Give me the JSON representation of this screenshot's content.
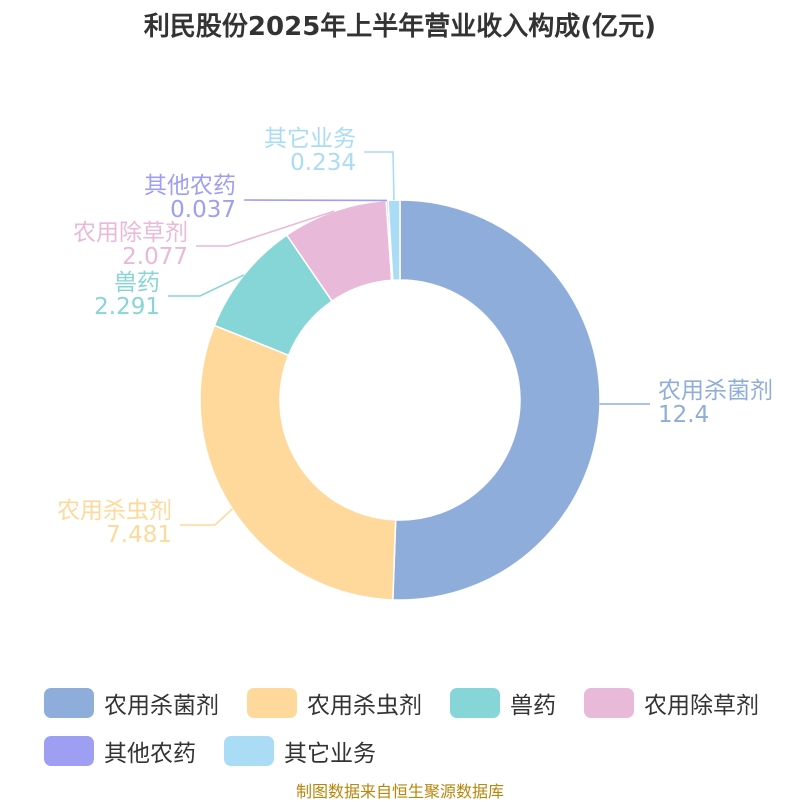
{
  "title": "利民股份2025年上半年营业收入构成(亿元)",
  "source": "制图数据来自恒生聚源数据库",
  "chart_data": {
    "type": "pie",
    "donut": true,
    "title": "利民股份2025年上半年营业收入构成(亿元)",
    "categories": [
      "农用杀菌剂",
      "农用杀虫剂",
      "兽药",
      "农用除草剂",
      "其他农药",
      "其它业务"
    ],
    "values": [
      12.4,
      7.481,
      2.291,
      2.077,
      0.037,
      0.234
    ],
    "value_labels": [
      "12.4",
      "7.481",
      "2.291",
      "2.077",
      "0.037",
      "0.234"
    ],
    "colors": [
      "#8faddb",
      "#ffd99b",
      "#86d5d7",
      "#e8b9d9",
      "#9e9ef3",
      "#aadcf5"
    ],
    "legend_position": "bottom"
  }
}
